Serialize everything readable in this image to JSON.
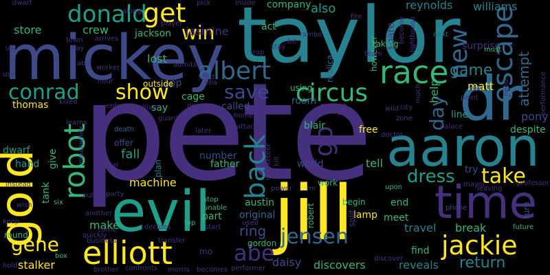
{
  "palette": {
    "background": "#000000",
    "purple": "#46307e",
    "indigo": "#3e4989",
    "blue": "#31688e",
    "teal": "#26828e",
    "green": "#1f9e89",
    "lime": "#35b779",
    "yellowgreen": "#6ece58",
    "yellow": "#fde725"
  },
  "words": [
    "pete",
    "taylor",
    "mickey",
    "jill",
    "aaron",
    "dr",
    "evil",
    "gold",
    "time",
    "race",
    "elliott",
    "robot",
    "albert",
    "jackie",
    "conrad",
    "circus",
    "donald",
    "get",
    "win",
    "show",
    "back",
    "escape",
    "jensen",
    "abe",
    "go",
    "save",
    "new",
    "gene",
    "take",
    "dress",
    "day",
    "return",
    "game",
    "ring",
    "store",
    "crew",
    "jackson",
    "jasmine",
    "attempt",
    "matt",
    "make",
    "machine",
    "company",
    "also",
    "reynolds",
    "williams",
    "fall",
    "fire",
    "act",
    "daisy",
    "austin",
    "original",
    "part",
    "number",
    "world",
    "tell",
    "free",
    "pony",
    "despite",
    "help",
    "line",
    "thomas",
    "lost",
    "app",
    "say",
    "cage",
    "called",
    "outside",
    "room",
    "using",
    "margo",
    "blair",
    "end",
    "begin",
    "meet",
    "travel",
    "lamp",
    "find",
    "reveals",
    "discovers",
    "stalker",
    "gordon",
    "break",
    "surprise",
    "replica",
    "however",
    "tank",
    "give",
    "hand",
    "dwarf",
    "plan",
    "father",
    "offer",
    "death",
    "leaving",
    "try",
    "spare",
    "taking",
    "next",
    "must",
    "robert",
    "split",
    "work",
    "mayor",
    "professor",
    "phone",
    "future",
    "turn",
    "hold",
    "box",
    "round",
    "wish",
    "six",
    "quickly",
    "business",
    "confronts",
    "morris",
    "becomes",
    "performer",
    "brother",
    "discover",
    "mo",
    "used",
    "start",
    "top",
    "stop",
    "unable",
    "come",
    "another",
    "keep",
    "party",
    "decides",
    "transfer",
    "power",
    "mr",
    "upon",
    "steal",
    "instead",
    "meanwhile",
    "killed",
    "learns",
    "entire",
    "sullivan",
    "destroy",
    "attacked",
    "home",
    "hour",
    "worker",
    "abu",
    "arrives",
    "town",
    "boy",
    "us",
    "player",
    "pick",
    "inside",
    "along",
    "dwarf",
    "rambo",
    "fat",
    "stay",
    "trap",
    "team",
    "scott",
    "elia",
    "admits",
    "guard",
    "doctor",
    "palace",
    "zone",
    "wild",
    "city",
    "point",
    "con",
    "need",
    "much",
    "performance",
    "lighthouse",
    "become",
    "musketeer",
    "joan",
    "later",
    "use",
    "put",
    "kill"
  ]
}
